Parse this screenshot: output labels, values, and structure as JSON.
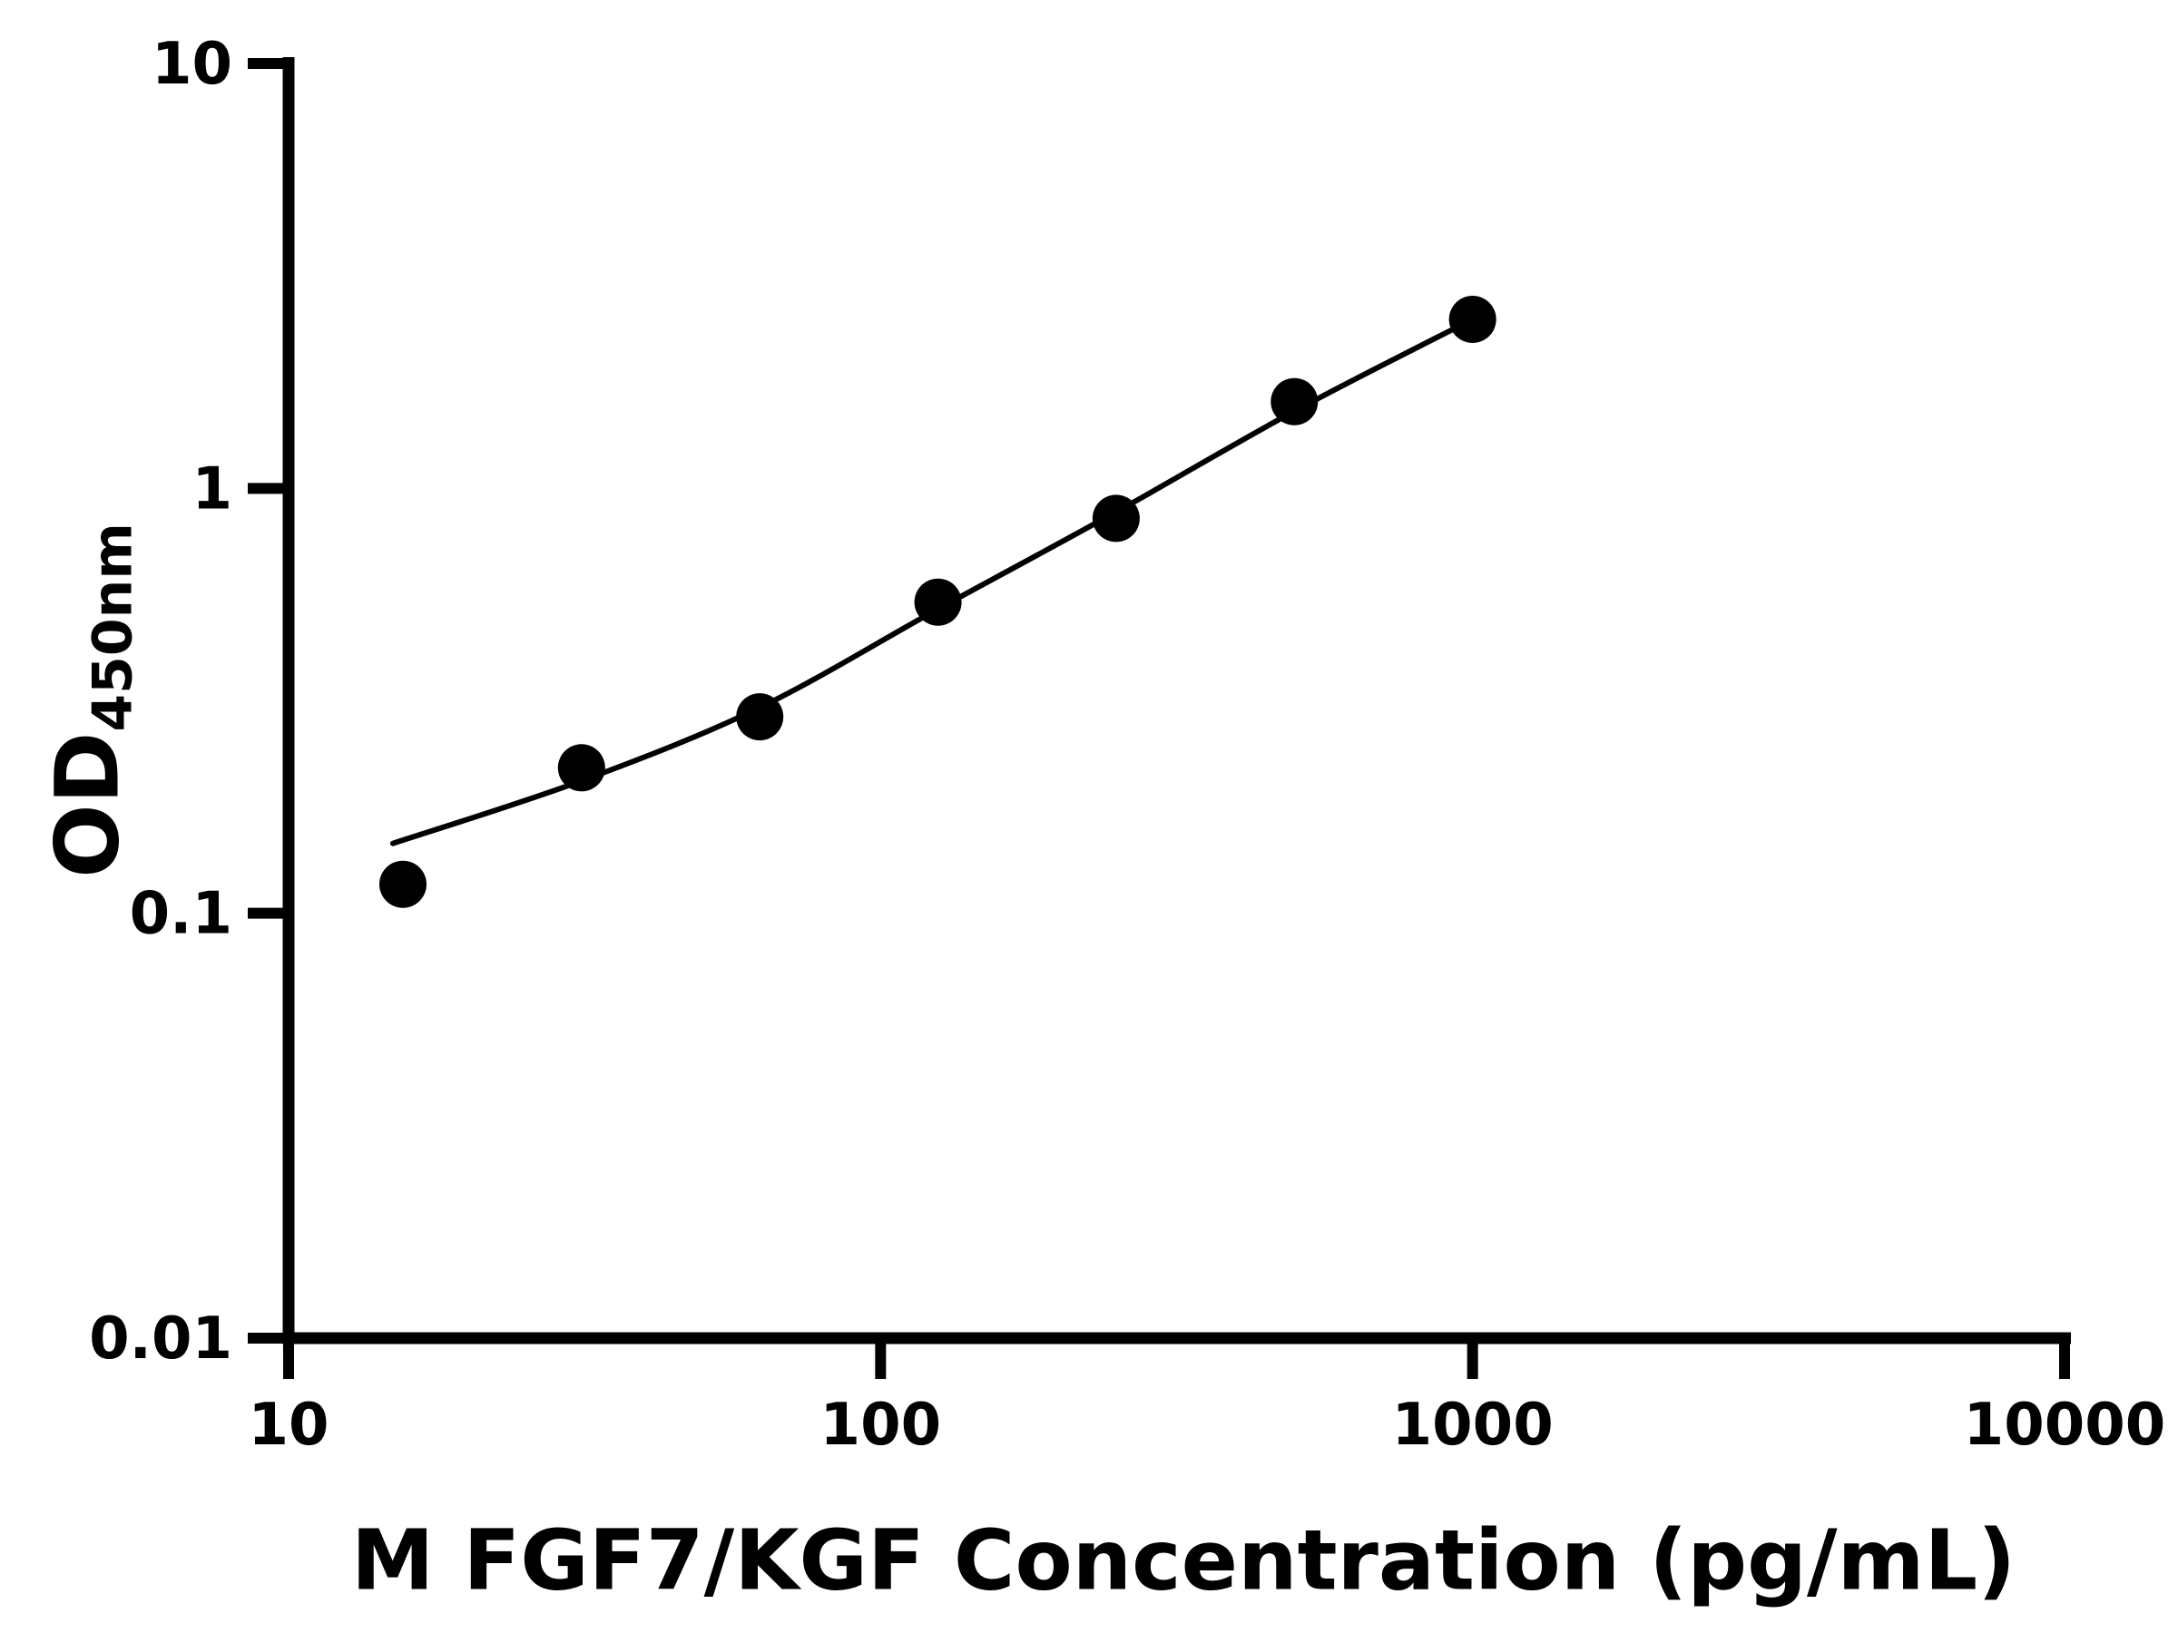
{
  "axis_titles": {
    "y_main": "OD",
    "y_sub": "450nm",
    "x": "M FGF7/KGF Concentration (pg/mL)"
  },
  "chart_data": {
    "type": "scatter",
    "title": "",
    "xlabel": "M FGF7/KGF Concentration (pg/mL)",
    "ylabel": "OD450nm",
    "xscale": "log",
    "yscale": "log",
    "xlim": [
      10,
      10000
    ],
    "ylim": [
      0.01,
      10
    ],
    "xticks": [
      10,
      100,
      1000,
      10000
    ],
    "xtick_labels": [
      "10",
      "100",
      "1000",
      "10000"
    ],
    "yticks": [
      0.01,
      0.1,
      1,
      10
    ],
    "ytick_labels": [
      "0.01",
      "0.1",
      "1",
      "10"
    ],
    "grid": false,
    "legend": false,
    "marker_color": "#000000",
    "line_color": "#000000",
    "x": [
      15.6,
      31.25,
      62.5,
      125,
      250,
      500,
      1000
    ],
    "y": [
      0.117,
      0.22,
      0.29,
      0.54,
      0.85,
      1.6,
      2.5
    ],
    "fit_curve_points": [
      [
        15,
        0.146
      ],
      [
        31.25,
        0.205
      ],
      [
        62.5,
        0.305
      ],
      [
        125,
        0.52
      ],
      [
        250,
        0.88
      ],
      [
        500,
        1.52
      ],
      [
        1000,
        2.5
      ]
    ]
  }
}
